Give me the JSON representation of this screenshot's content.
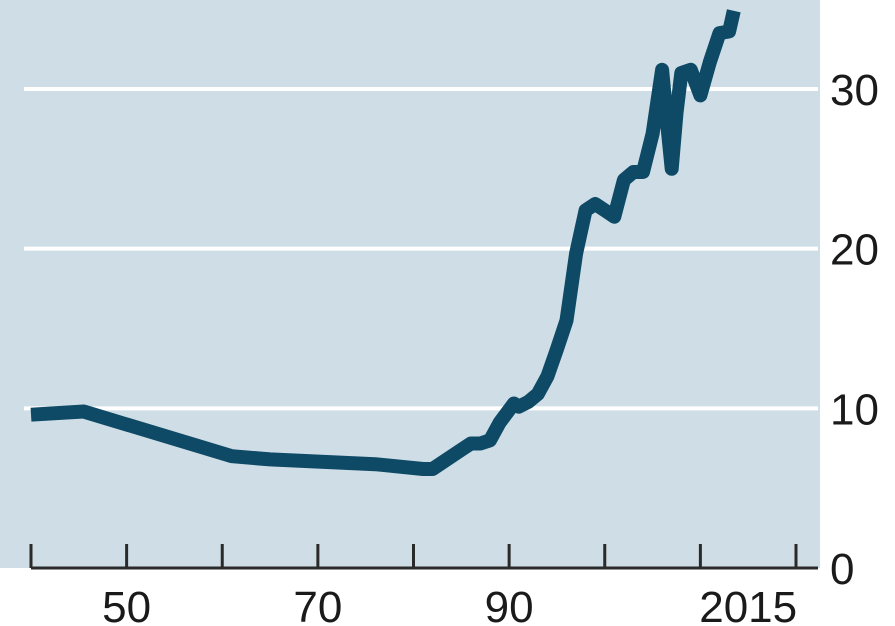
{
  "colors": {
    "plot_background": "#cfdee6",
    "gridline": "#ffffff",
    "series": "#0e4a66",
    "axis": "#2a2a2a",
    "text": "#1a1a1a"
  },
  "chart_data": {
    "type": "line",
    "title": "",
    "xlabel": "",
    "ylabel": "",
    "xlim": [
      1940,
      2021
    ],
    "ylim": [
      0,
      35
    ],
    "grid": "horizontal",
    "y_axis_side": "right",
    "x_tick_marks": [
      1940,
      1950,
      1960,
      1970,
      1980,
      1990,
      2000,
      2010,
      2020
    ],
    "x_tick_labels": [
      {
        "value": 1950,
        "label": "50"
      },
      {
        "value": 1970,
        "label": "70"
      },
      {
        "value": 1990,
        "label": "90"
      },
      {
        "value": 2015,
        "label": "2015"
      }
    ],
    "y_ticks": [
      {
        "value": 0,
        "label": "0"
      },
      {
        "value": 10,
        "label": "10"
      },
      {
        "value": 20,
        "label": "20"
      },
      {
        "value": 30,
        "label": "30"
      }
    ],
    "series": [
      {
        "x": [
          1940,
          1945.5,
          1961,
          1965,
          1976,
          1981,
          1982,
          1985,
          1986,
          1987,
          1988,
          1989,
          1990,
          1990.5,
          1991,
          1992,
          1993,
          1994,
          1995,
          1996,
          1997,
          1998,
          1999,
          2000,
          2001,
          2002,
          2003,
          2004,
          2005,
          2006,
          2006.5,
          2007,
          2007.5,
          2008,
          2009,
          2010,
          2011,
          2012,
          2013,
          2013.5
        ],
        "y": [
          9.6,
          9.8,
          7.0,
          6.8,
          6.5,
          6.2,
          6.2,
          7.4,
          7.8,
          7.8,
          8.0,
          9.1,
          9.9,
          10.3,
          10.1,
          10.4,
          10.9,
          12.0,
          13.7,
          15.5,
          19.7,
          22.4,
          22.8,
          22.4,
          22.0,
          24.3,
          24.8,
          24.8,
          27.2,
          31.2,
          28.0,
          25.0,
          28.5,
          31.0,
          31.2,
          29.6,
          31.7,
          33.5,
          33.6,
          34.9
        ]
      }
    ]
  }
}
